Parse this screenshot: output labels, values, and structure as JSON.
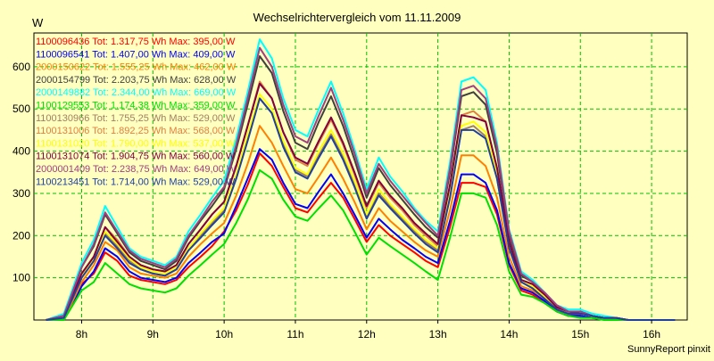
{
  "chart_data": {
    "type": "line",
    "title": "Wechselrichtervergleich vom 11.11.2009",
    "ylabel": "W",
    "xlabel": "",
    "footer": "SunnyReport pinxit",
    "ylim": [
      0,
      680
    ],
    "xlim": [
      7.33,
      16.5
    ],
    "y_ticks": [
      100,
      200,
      300,
      400,
      500,
      600
    ],
    "x_ticks": [
      {
        "v": 8,
        "label": "8h"
      },
      {
        "v": 9,
        "label": "9h"
      },
      {
        "v": 10,
        "label": "10h"
      },
      {
        "v": 11,
        "label": "11h"
      },
      {
        "v": 12,
        "label": "12h"
      },
      {
        "v": 13,
        "label": "13h"
      },
      {
        "v": 14,
        "label": "14h"
      },
      {
        "v": 15,
        "label": "15h"
      },
      {
        "v": 16,
        "label": "16h"
      }
    ],
    "grid": true,
    "legend_position": "top-left",
    "x": [
      7.5,
      7.75,
      8.0,
      8.17,
      8.33,
      8.5,
      8.67,
      8.83,
      9.0,
      9.17,
      9.33,
      9.5,
      9.67,
      9.83,
      10.0,
      10.17,
      10.33,
      10.5,
      10.67,
      10.83,
      11.0,
      11.17,
      11.33,
      11.5,
      11.67,
      11.83,
      12.0,
      12.17,
      12.33,
      12.5,
      12.67,
      12.83,
      13.0,
      13.17,
      13.33,
      13.5,
      13.67,
      13.83,
      14.0,
      14.17,
      14.33,
      14.5,
      14.67,
      14.83,
      15.0,
      15.17,
      15.33,
      15.5,
      15.67,
      15.83,
      16.0,
      16.17,
      16.33
    ],
    "series": [
      {
        "name": "1100096436 Tot: 1.317,75 Wh Max: 395,00 W",
        "color": "#ff0000",
        "values": [
          0,
          0,
          85,
          110,
          160,
          140,
          105,
          95,
          90,
          85,
          95,
          125,
          150,
          175,
          210,
          260,
          320,
          395,
          365,
          315,
          265,
          255,
          290,
          325,
          290,
          240,
          185,
          225,
          200,
          180,
          160,
          140,
          125,
          220,
          325,
          325,
          315,
          250,
          130,
          70,
          60,
          40,
          20,
          10,
          10,
          5,
          5,
          5,
          0,
          0,
          0,
          0,
          0
        ]
      },
      {
        "name": "1100096541 Tot: 1.407,00 Wh Max: 409,00 W",
        "color": "#0000ff",
        "values": [
          0,
          0,
          80,
          115,
          170,
          150,
          115,
          100,
          95,
          90,
          100,
          135,
          160,
          185,
          205,
          270,
          335,
          405,
          380,
          325,
          275,
          265,
          305,
          345,
          300,
          250,
          195,
          240,
          215,
          190,
          170,
          150,
          135,
          235,
          345,
          345,
          325,
          260,
          135,
          75,
          65,
          45,
          20,
          10,
          10,
          5,
          5,
          5,
          0,
          0,
          0,
          0,
          0
        ]
      },
      {
        "name": "2000150622 Tot: 1.555,25 Wh Max: 462,00 W",
        "color": "#ff8000",
        "values": [
          0,
          0,
          90,
          130,
          185,
          165,
          125,
          110,
          105,
          100,
          110,
          150,
          180,
          205,
          230,
          295,
          370,
          460,
          420,
          365,
          310,
          300,
          340,
          385,
          335,
          280,
          215,
          265,
          235,
          210,
          185,
          165,
          150,
          260,
          390,
          390,
          365,
          290,
          150,
          80,
          70,
          50,
          25,
          15,
          15,
          10,
          5,
          5,
          0,
          0,
          0,
          0,
          0
        ]
      },
      {
        "name": "2000154799 Tot: 2.203,75 Wh Max: 628,00 W",
        "color": "#404040",
        "values": [
          0,
          10,
          125,
          175,
          250,
          205,
          160,
          140,
          130,
          120,
          140,
          195,
          235,
          270,
          310,
          405,
          510,
          625,
          585,
          495,
          420,
          405,
          470,
          530,
          460,
          380,
          290,
          360,
          320,
          285,
          250,
          220,
          195,
          350,
          530,
          540,
          510,
          395,
          200,
          105,
          90,
          60,
          30,
          20,
          20,
          10,
          5,
          5,
          0,
          0,
          0,
          0,
          0
        ]
      },
      {
        "name": "2000149882 Tot: 2.344,00 Wh Max: 669,00 W",
        "color": "#00ffff",
        "values": [
          0,
          15,
          135,
          190,
          270,
          220,
          170,
          150,
          140,
          130,
          150,
          210,
          250,
          290,
          330,
          430,
          540,
          665,
          620,
          525,
          450,
          435,
          500,
          565,
          490,
          405,
          310,
          385,
          340,
          305,
          265,
          235,
          210,
          375,
          565,
          575,
          545,
          420,
          215,
          115,
          95,
          65,
          35,
          25,
          25,
          15,
          10,
          5,
          0,
          0,
          0,
          0,
          0
        ]
      },
      {
        "name": "1100129553 Tot: 1.174,38 Wh Max: 359,00 W",
        "color": "#00e000",
        "values": [
          0,
          0,
          70,
          90,
          135,
          110,
          85,
          75,
          70,
          65,
          75,
          105,
          130,
          155,
          180,
          230,
          285,
          355,
          335,
          285,
          245,
          235,
          265,
          295,
          260,
          210,
          155,
          195,
          175,
          155,
          135,
          115,
          95,
          195,
          300,
          300,
          290,
          225,
          115,
          60,
          55,
          40,
          20,
          10,
          5,
          5,
          0,
          0,
          0,
          0,
          0,
          0,
          0
        ]
      },
      {
        "name": "1100130966 Tot: 1.755,25 Wh Max: 529,00 W",
        "color": "#a08060",
        "values": [
          0,
          5,
          100,
          140,
          205,
          175,
          140,
          120,
          110,
          105,
          120,
          165,
          200,
          230,
          260,
          340,
          430,
          525,
          490,
          415,
          355,
          340,
          390,
          440,
          385,
          320,
          245,
          300,
          270,
          240,
          210,
          185,
          165,
          295,
          450,
          460,
          435,
          335,
          175,
          90,
          80,
          55,
          25,
          15,
          15,
          10,
          5,
          5,
          0,
          0,
          0,
          0,
          0
        ]
      },
      {
        "name": "1100131006 Tot: 1.892,25 Wh Max: 568,00 W",
        "color": "#e08040",
        "values": [
          0,
          10,
          110,
          150,
          220,
          190,
          150,
          130,
          120,
          115,
          130,
          180,
          215,
          250,
          280,
          365,
          460,
          565,
          525,
          445,
          380,
          365,
          420,
          475,
          415,
          345,
          265,
          325,
          290,
          260,
          225,
          200,
          175,
          320,
          485,
          495,
          470,
          360,
          185,
          95,
          85,
          60,
          30,
          20,
          15,
          10,
          5,
          5,
          0,
          0,
          0,
          0,
          0
        ]
      },
      {
        "name": "1100131020 Tot: 1.790,00 Wh Max: 537,00 W",
        "color": "#ffff00",
        "values": [
          0,
          10,
          105,
          145,
          210,
          180,
          145,
          125,
          115,
          110,
          125,
          170,
          205,
          235,
          265,
          345,
          440,
          535,
          500,
          425,
          360,
          345,
          400,
          450,
          395,
          330,
          250,
          310,
          275,
          245,
          215,
          190,
          170,
          300,
          460,
          470,
          445,
          345,
          180,
          90,
          80,
          55,
          30,
          20,
          15,
          10,
          5,
          5,
          0,
          0,
          0,
          0,
          0
        ]
      },
      {
        "name": "1100131074 Tot: 1.904,75 Wh Max: 560,00 W",
        "color": "#800040",
        "values": [
          0,
          10,
          110,
          150,
          220,
          185,
          150,
          130,
          120,
          115,
          130,
          180,
          215,
          250,
          280,
          365,
          460,
          560,
          525,
          445,
          385,
          370,
          425,
          480,
          420,
          350,
          270,
          330,
          295,
          265,
          230,
          205,
          180,
          320,
          485,
          480,
          470,
          360,
          185,
          95,
          85,
          60,
          30,
          20,
          15,
          10,
          5,
          5,
          0,
          0,
          0,
          0,
          0
        ]
      },
      {
        "name": "2000001409 Tot: 2.238,75 Wh Max: 649,00 W",
        "color": "#a04080",
        "values": [
          0,
          10,
          125,
          180,
          255,
          210,
          165,
          145,
          135,
          125,
          145,
          200,
          240,
          280,
          315,
          415,
          525,
          645,
          600,
          510,
          435,
          420,
          485,
          550,
          475,
          395,
          300,
          370,
          330,
          295,
          260,
          230,
          200,
          360,
          545,
          555,
          525,
          410,
          210,
          110,
          90,
          65,
          35,
          20,
          20,
          10,
          5,
          5,
          0,
          0,
          0,
          0,
          0
        ]
      },
      {
        "name": "1100213451 Tot: 1.714,00 Wh Max: 529,00 W",
        "color": "#2040a0",
        "values": [
          0,
          5,
          100,
          140,
          200,
          170,
          135,
          120,
          110,
          105,
          120,
          165,
          195,
          225,
          255,
          335,
          425,
          525,
          490,
          410,
          350,
          335,
          385,
          435,
          380,
          315,
          240,
          295,
          265,
          235,
          205,
          180,
          160,
          290,
          450,
          450,
          430,
          335,
          170,
          90,
          75,
          50,
          25,
          15,
          15,
          10,
          5,
          5,
          0,
          0,
          0,
          0,
          0
        ]
      }
    ]
  }
}
